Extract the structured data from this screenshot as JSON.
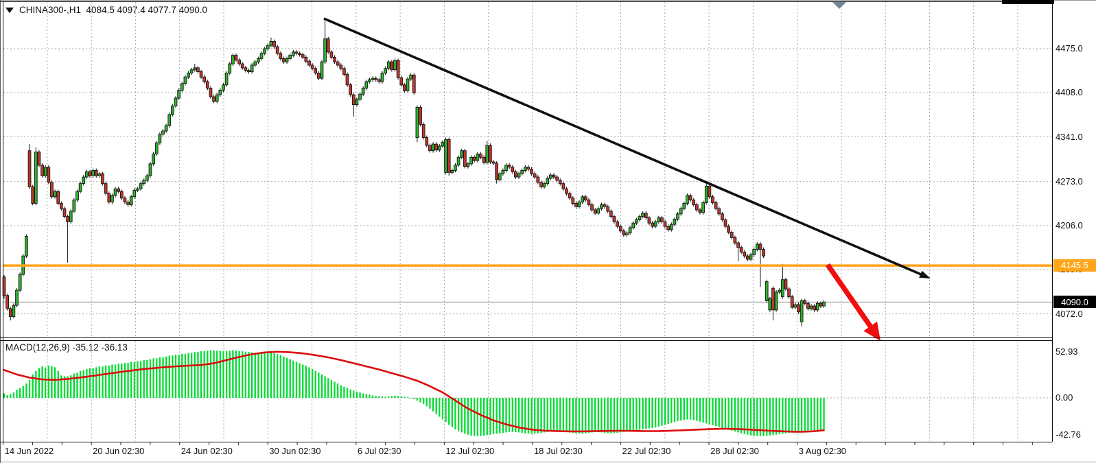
{
  "title": {
    "symbol_period": "CHINA300-,H1",
    "ohlc": "4084.5 4097.4 4077.7 4090.0"
  },
  "indicator_label": "MACD(12,26,9) -35.12 -36.13",
  "colors": {
    "bull": "#2db32d",
    "bear": "#c2372c",
    "candle_border": "#151515",
    "macd_bar": "#00dc32",
    "signal_line": "#da0c0c",
    "orange_line": "#ffa519",
    "black_label_bg": "#000000",
    "grid": "#a6a6a6",
    "border": "#111111",
    "current_price_line": "#8a8a8a",
    "trend_arrow": "#111111",
    "red_arrow": "#f10e0e",
    "shift_marker": "#74849b"
  },
  "chart_data": {
    "type": "candlestick",
    "symbol": "CHINA300-",
    "timeframe": "H1",
    "last_ohlc": {
      "open": 4084.5,
      "high": 4097.4,
      "low": 4077.7,
      "close": 4090.0
    },
    "price_ticks": [
      {
        "label": "4475.0",
        "price": 4475
      },
      {
        "label": "4408.0",
        "price": 4408
      },
      {
        "label": "4341.0",
        "price": 4341
      },
      {
        "label": "4273.0",
        "price": 4273
      },
      {
        "label": "4206.0",
        "price": 4206
      },
      {
        "label": "4139.0",
        "price": 4139
      },
      {
        "label": "4072.0",
        "price": 4072
      }
    ],
    "time_ticks": [
      {
        "label": "14 Jun 2022"
      },
      {
        "label": "20 Jun 02:30"
      },
      {
        "label": "24 Jun 02:30"
      },
      {
        "label": "30 Jun 02:30"
      },
      {
        "label": "6 Jul 02:30"
      },
      {
        "label": "12 Jul 02:30"
      },
      {
        "label": "18 Jul 02:30"
      },
      {
        "label": "22 Jul 02:30"
      },
      {
        "label": "28 Jul 02:30"
      },
      {
        "label": "3 Aug 02:30"
      }
    ],
    "orange_line": {
      "price": 4145.5,
      "label": "4145.5"
    },
    "current_price": {
      "price": 4090.0,
      "label": "4090.0"
    },
    "candles": {
      "closes": [
        4100,
        4080,
        4068,
        4085,
        4108,
        4132,
        4160,
        4190,
        4265,
        4240,
        4318,
        4298,
        4282,
        4295,
        4272,
        4250,
        4258,
        4240,
        4232,
        4220,
        4212,
        4228,
        4245,
        4258,
        4270,
        4280,
        4288,
        4282,
        4290,
        4282,
        4285,
        4270,
        4255,
        4242,
        4252,
        4262,
        4258,
        4248,
        4242,
        4238,
        4250,
        4260,
        4262,
        4270,
        4275,
        4282,
        4300,
        4315,
        4332,
        4345,
        4350,
        4358,
        4375,
        4388,
        4400,
        4412,
        4422,
        4432,
        4438,
        4443,
        4446,
        4440,
        4432,
        4425,
        4415,
        4402,
        4395,
        4405,
        4412,
        4420,
        4438,
        4452,
        4465,
        4458,
        4452,
        4446,
        4442,
        4440,
        4450,
        4455,
        4460,
        4468,
        4475,
        4480,
        4486,
        4478,
        4468,
        4460,
        4455,
        4460,
        4465,
        4470,
        4468,
        4466,
        4462,
        4456,
        4450,
        4445,
        4438,
        4430,
        4455,
        4490,
        4470,
        4462,
        4455,
        4450,
        4445,
        4436,
        4420,
        4405,
        4390,
        4398,
        4406,
        4415,
        4425,
        4428,
        4430,
        4428,
        4425,
        4438,
        4445,
        4455,
        4443,
        4457,
        4431,
        4420,
        4411,
        4429,
        4435,
        4408,
        4386,
        4360,
        4340,
        4328,
        4320,
        4330,
        4321,
        4327,
        4333,
        4337,
        4287,
        4290,
        4298,
        4310,
        4320,
        4296,
        4300,
        4310,
        4305,
        4315,
        4310,
        4302,
        4328,
        4303,
        4301,
        4276,
        4285,
        4290,
        4298,
        4295,
        4288,
        4280,
        4285,
        4290,
        4295,
        4292,
        4285,
        4280,
        4272,
        4265,
        4270,
        4278,
        4283,
        4280,
        4275,
        4270,
        4262,
        4255,
        4248,
        4240,
        4235,
        4242,
        4250,
        4245,
        4238,
        4230,
        4225,
        4232,
        4238,
        4235,
        4228,
        4220,
        4212,
        4205,
        4198,
        4192,
        4195,
        4203,
        4210,
        4215,
        4220,
        4225,
        4218,
        4210,
        4205,
        4212,
        4218,
        4212,
        4205,
        4200,
        4208,
        4216,
        4224,
        4232,
        4240,
        4252,
        4245,
        4238,
        4230,
        4226,
        4241,
        4266,
        4250,
        4241,
        4232,
        4224,
        4215,
        4205,
        4196,
        4188,
        4180,
        4173,
        4166,
        4160,
        4155,
        4162,
        4170,
        4178,
        4170,
        4160,
        4121,
        4095,
        4078,
        4105,
        4108,
        4124,
        4110,
        4098,
        4082,
        4086,
        4075,
        4092,
        4088,
        4080,
        4084,
        4078,
        4088,
        4084,
        4090
      ],
      "opens_override": {
        "0": 4128,
        "8": 4320,
        "130": 4340,
        "139": 4287,
        "240": 4092,
        "241": 4078,
        "242": 4111,
        "245": 4098,
        "251": 4060
      },
      "high_override": {
        "8": 4330,
        "10": 4325,
        "60": 4452,
        "84": 4492,
        "101": 4520,
        "152": 4335,
        "221": 4270,
        "245": 4148
      },
      "low_override": {
        "0": 4095,
        "2": 4062,
        "20": 4150,
        "110": 4372,
        "130": 4333,
        "140": 4282,
        "155": 4270,
        "231": 4152,
        "238": 4113,
        "242": 4062,
        "251": 4053
      }
    },
    "indicator": {
      "name": "MACD",
      "params": "12,26,9",
      "last_macd": -35.12,
      "last_signal": -36.13,
      "scale_labels": [
        {
          "label": "52.93",
          "value": 52.93
        },
        {
          "label": "0.00",
          "value": 0
        },
        {
          "label": "-42.76",
          "value": -42.76
        }
      ],
      "histogram": [
        5,
        3,
        4,
        6,
        9,
        11,
        13,
        16,
        20,
        26,
        30,
        33,
        35,
        34,
        36,
        35,
        34,
        30,
        25,
        24,
        24,
        25,
        27,
        28,
        30,
        31,
        32,
        33,
        33,
        34,
        35,
        35,
        36,
        36,
        37,
        37,
        38,
        38,
        39,
        39,
        40,
        40,
        41,
        41,
        42,
        42,
        43,
        44,
        44,
        45,
        45,
        46,
        47,
        47,
        48,
        48,
        49,
        49,
        50,
        50,
        51,
        51,
        52,
        52,
        52.5,
        52.9,
        52.7,
        52.5,
        52.3,
        52,
        52.2,
        52.4,
        52.9,
        52.6,
        52.2,
        51.8,
        51.4,
        51,
        50.6,
        50.2,
        50,
        49.8,
        50,
        50.2,
        50,
        49.6,
        48.8,
        47.5,
        46,
        44.5,
        43,
        41.5,
        40,
        38.5,
        37,
        35.5,
        34,
        32,
        30,
        28,
        26,
        24,
        22,
        20,
        18,
        16,
        14,
        12.5,
        11,
        9.5,
        8,
        7,
        6,
        5,
        4.2,
        3.5,
        2.8,
        2.2,
        1.8,
        1.5,
        1.2,
        1.5,
        2,
        2.5,
        2,
        1.5,
        1,
        0.5,
        -0.5,
        -1.5,
        -3,
        -5,
        -7,
        -9.5,
        -12,
        -15,
        -18,
        -21,
        -24,
        -27,
        -30,
        -32.5,
        -35,
        -37,
        -38.5,
        -40,
        -41,
        -42,
        -42.5,
        -42.76,
        -42.5,
        -42,
        -41.5,
        -41,
        -40.5,
        -40,
        -39.5,
        -39,
        -38.5,
        -38.2,
        -38,
        -38.2,
        -38.5,
        -39,
        -39.5,
        -39.8,
        -40,
        -39.8,
        -39.5,
        -39,
        -38.5,
        -38,
        -37.5,
        -37.2,
        -37,
        -37.2,
        -37.5,
        -38,
        -38.5,
        -39,
        -39.5,
        -39.8,
        -40,
        -39.5,
        -39,
        -38.5,
        -38,
        -38.2,
        -38.5,
        -39,
        -39.3,
        -39.5,
        -39.3,
        -39,
        -38.5,
        -38,
        -37.5,
        -37,
        -36.5,
        -36,
        -35.5,
        -35,
        -34.5,
        -34,
        -33.5,
        -33,
        -32,
        -31,
        -30,
        -29,
        -28,
        -27,
        -26,
        -25.2,
        -24.5,
        -24,
        -24.2,
        -24.8,
        -25.5,
        -26.5,
        -27.5,
        -28.5,
        -29.5,
        -30.5,
        -31.5,
        -32.5,
        -33.5,
        -34.5,
        -35.5,
        -36.5,
        -37.5,
        -38.5,
        -39.5,
        -40.3,
        -41,
        -41.8,
        -42.3,
        -42.6,
        -42.76,
        -42.5,
        -42.2,
        -41.8,
        -41.4,
        -41,
        -40.5,
        -40,
        -39.5,
        -39,
        -38.5,
        -38,
        -37.6,
        -37.2,
        -36.8,
        -36.5,
        -36.2,
        -36,
        -35.8,
        -35.5,
        -35.12
      ],
      "signal_waypoints": [
        [
          0,
          31
        ],
        [
          4,
          26
        ],
        [
          8,
          22.5
        ],
        [
          12,
          20.5
        ],
        [
          16,
          20
        ],
        [
          20,
          21
        ],
        [
          26,
          23.5
        ],
        [
          32,
          26.5
        ],
        [
          38,
          29.5
        ],
        [
          44,
          32
        ],
        [
          50,
          34
        ],
        [
          56,
          35.5
        ],
        [
          62,
          36.5
        ],
        [
          66,
          38.5
        ],
        [
          70,
          42
        ],
        [
          74,
          45.5
        ],
        [
          78,
          48.5
        ],
        [
          82,
          50.5
        ],
        [
          86,
          51.3
        ],
        [
          90,
          50.8
        ],
        [
          94,
          49.5
        ],
        [
          98,
          47.5
        ],
        [
          102,
          45
        ],
        [
          106,
          42
        ],
        [
          110,
          38.5
        ],
        [
          114,
          35
        ],
        [
          118,
          31.5
        ],
        [
          122,
          27.5
        ],
        [
          126,
          23.5
        ],
        [
          130,
          19
        ],
        [
          134,
          13
        ],
        [
          138,
          6
        ],
        [
          142,
          -3
        ],
        [
          146,
          -12
        ],
        [
          150,
          -19
        ],
        [
          154,
          -25
        ],
        [
          158,
          -29.5
        ],
        [
          162,
          -33
        ],
        [
          166,
          -35.3
        ],
        [
          170,
          -36.5
        ],
        [
          174,
          -37
        ],
        [
          178,
          -37.3
        ],
        [
          182,
          -37.3
        ],
        [
          186,
          -37
        ],
        [
          190,
          -36.8
        ],
        [
          194,
          -36.6
        ],
        [
          198,
          -36.8
        ],
        [
          202,
          -37
        ],
        [
          206,
          -37
        ],
        [
          210,
          -36.6
        ],
        [
          214,
          -36
        ],
        [
          218,
          -35.4
        ],
        [
          222,
          -34.8
        ],
        [
          226,
          -34.4
        ],
        [
          230,
          -34.6
        ],
        [
          234,
          -35.2
        ],
        [
          238,
          -36
        ],
        [
          242,
          -36.8
        ],
        [
          246,
          -37.4
        ],
        [
          250,
          -37.8
        ],
        [
          254,
          -37.4
        ],
        [
          258,
          -36.13
        ]
      ]
    },
    "trendline": {
      "from": [
        472,
        27
      ],
      "to": [
        1356,
        406
      ]
    },
    "red_arrow": {
      "from": [
        1206,
        386
      ],
      "to": [
        1283,
        497
      ]
    }
  }
}
